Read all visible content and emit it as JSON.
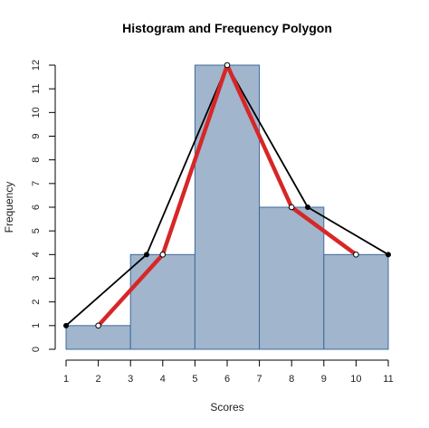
{
  "chart_data": {
    "type": "bar",
    "title": "Histogram and Frequency Polygon",
    "xlabel": "Scores",
    "ylabel": "Frequency",
    "xlim": [
      1,
      11
    ],
    "ylim": [
      0,
      12
    ],
    "x_ticks": [
      "1",
      "2",
      "3",
      "4",
      "5",
      "6",
      "7",
      "8",
      "9",
      "10",
      "11"
    ],
    "y_ticks": [
      "0",
      "1",
      "2",
      "3",
      "4",
      "5",
      "6",
      "7",
      "8",
      "9",
      "10",
      "11",
      "12"
    ],
    "bins": [
      {
        "start": 1,
        "end": 3,
        "count": 1
      },
      {
        "start": 3,
        "end": 5,
        "count": 4
      },
      {
        "start": 5,
        "end": 7,
        "count": 12
      },
      {
        "start": 7,
        "end": 9,
        "count": 6
      },
      {
        "start": 9,
        "end": 11,
        "count": 4
      }
    ],
    "series": [
      {
        "x": [
          1,
          3.5,
          6,
          8.5,
          11
        ],
        "y": [
          1,
          4,
          12,
          6,
          4
        ],
        "color": "#000000"
      },
      {
        "x": [
          2,
          4,
          6,
          8,
          10
        ],
        "y": [
          1,
          4,
          12,
          6,
          4
        ],
        "color": "#d62728"
      }
    ],
    "bar_fill": "#a1b5cc",
    "bar_stroke": "#3d6a9e",
    "grid": false,
    "legend": "none"
  }
}
